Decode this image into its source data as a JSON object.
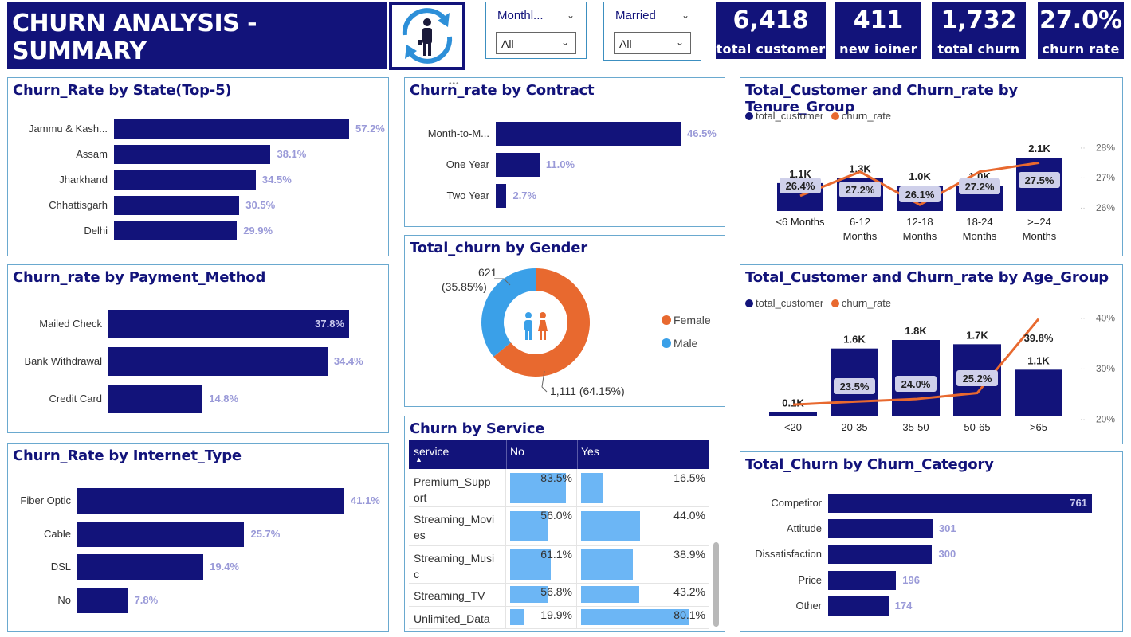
{
  "header": {
    "title": "CHURN ANALYSIS - SUMMARY",
    "logo_icon": "churn-person-cycle-icon"
  },
  "slicers": [
    {
      "label": "Monthl...",
      "value": "All"
    },
    {
      "label": "Married",
      "value": "All"
    }
  ],
  "kpis": [
    {
      "value": "6,418",
      "label": "total customer"
    },
    {
      "value": "411",
      "label": "new ioiner"
    },
    {
      "value": "1,732",
      "label": "total churn"
    },
    {
      "value": "27.0%",
      "label": "churn rate"
    }
  ],
  "colors": {
    "navy": "#12137a",
    "orange": "#e8692f",
    "light_blue": "#6cb6f5",
    "panel_border": "#6aa9cf"
  },
  "panels": {
    "state": {
      "title": "Churn_Rate by State(Top-5)",
      "rows": [
        {
          "label": "Jammu & Kash...",
          "value": 57.2,
          "text": "57.2%"
        },
        {
          "label": "Assam",
          "value": 38.1,
          "text": "38.1%"
        },
        {
          "label": "Jharkhand",
          "value": 34.5,
          "text": "34.5%"
        },
        {
          "label": "Chhattisgarh",
          "value": 30.5,
          "text": "30.5%"
        },
        {
          "label": "Delhi",
          "value": 29.9,
          "text": "29.9%"
        }
      ]
    },
    "payment": {
      "title": "Churn_rate by Payment_Method",
      "rows": [
        {
          "label": "Mailed Check",
          "value": 37.8,
          "text": "37.8%"
        },
        {
          "label": "Bank Withdrawal",
          "value": 34.4,
          "text": "34.4%"
        },
        {
          "label": "Credit Card",
          "value": 14.8,
          "text": "14.8%"
        }
      ]
    },
    "internet": {
      "title": "Churn_Rate by Internet_Type",
      "rows": [
        {
          "label": "Fiber Optic",
          "value": 41.1,
          "text": "41.1%"
        },
        {
          "label": "Cable",
          "value": 25.7,
          "text": "25.7%"
        },
        {
          "label": "DSL",
          "value": 19.4,
          "text": "19.4%"
        },
        {
          "label": "No",
          "value": 7.8,
          "text": "7.8%"
        }
      ]
    },
    "contract": {
      "title": "Churn_rate by Contract",
      "rows": [
        {
          "label": "Month-to-M...",
          "value": 46.5,
          "text": "46.5%"
        },
        {
          "label": "One Year",
          "value": 11.0,
          "text": "11.0%"
        },
        {
          "label": "Two Year",
          "value": 2.7,
          "text": "2.7%"
        }
      ]
    },
    "gender": {
      "title": "Total_churn by Gender",
      "slices": [
        {
          "name": "Female",
          "value": 1111,
          "label": "1,111 (64.15%)"
        },
        {
          "name": "Male",
          "value": 621,
          "label_line1": "621",
          "label_line2": "(35.85%)"
        }
      ],
      "center_icon": "couple-icon"
    },
    "service": {
      "title": "Churn by Service",
      "columns": [
        "service",
        "No",
        "Yes"
      ],
      "rows": [
        {
          "service_line1": "Premium_Supp",
          "service_line2": "ort",
          "no": 83.5,
          "no_text": "83.5%",
          "yes": 16.5,
          "yes_text": "16.5%"
        },
        {
          "service_line1": "Streaming_Movi",
          "service_line2": "es",
          "no": 56.0,
          "no_text": "56.0%",
          "yes": 44.0,
          "yes_text": "44.0%"
        },
        {
          "service_line1": "Streaming_Musi",
          "service_line2": "c",
          "no": 61.1,
          "no_text": "61.1%",
          "yes": 38.9,
          "yes_text": "38.9%"
        },
        {
          "service_line1": "Streaming_TV",
          "service_line2": "",
          "no": 56.8,
          "no_text": "56.8%",
          "yes": 43.2,
          "yes_text": "43.2%"
        },
        {
          "service_line1": "Unlimited_Data",
          "service_line2": "",
          "no": 19.9,
          "no_text": "19.9%",
          "yes": 80.1,
          "yes_text": "80.1%"
        }
      ]
    },
    "tenure": {
      "title": "Total_Customer and Churn_rate by Tenure_Group",
      "legend": [
        "total_customer",
        "churn_rate"
      ]
    },
    "age": {
      "title": "Total_Customer and Churn_rate by Age_Group",
      "legend": [
        "total_customer",
        "churn_rate"
      ]
    },
    "category": {
      "title": "Total_Churn by Churn_Category",
      "rows": [
        {
          "label": "Competitor",
          "value": 761,
          "text": "761"
        },
        {
          "label": "Attitude",
          "value": 301,
          "text": "301"
        },
        {
          "label": "Dissatisfaction",
          "value": 300,
          "text": "300"
        },
        {
          "label": "Price",
          "value": 196,
          "text": "196"
        },
        {
          "label": "Other",
          "value": 174,
          "text": "174"
        }
      ]
    }
  },
  "chart_data": [
    {
      "type": "bar",
      "title": "Churn_Rate by State(Top-5)",
      "categories": [
        "Jammu & Kash...",
        "Assam",
        "Jharkhand",
        "Chhattisgarh",
        "Delhi"
      ],
      "values": [
        57.2,
        38.1,
        34.5,
        30.5,
        29.9
      ]
    },
    {
      "type": "bar",
      "title": "Churn_rate by Payment_Method",
      "categories": [
        "Mailed Check",
        "Bank Withdrawal",
        "Credit Card"
      ],
      "values": [
        37.8,
        34.4,
        14.8
      ]
    },
    {
      "type": "bar",
      "title": "Churn_Rate by Internet_Type",
      "categories": [
        "Fiber Optic",
        "Cable",
        "DSL",
        "No"
      ],
      "values": [
        41.1,
        25.7,
        19.4,
        7.8
      ]
    },
    {
      "type": "bar",
      "title": "Churn_rate by Contract",
      "categories": [
        "Month-to-M...",
        "One Year",
        "Two Year"
      ],
      "values": [
        46.5,
        11.0,
        2.7
      ]
    },
    {
      "type": "pie",
      "title": "Total_churn by Gender",
      "categories": [
        "Female",
        "Male"
      ],
      "values": [
        1111,
        621
      ]
    },
    {
      "type": "table",
      "title": "Churn by Service",
      "columns": [
        "service",
        "No",
        "Yes"
      ],
      "rows": [
        [
          "Premium_Support",
          83.5,
          16.5
        ],
        [
          "Streaming_Movies",
          56.0,
          44.0
        ],
        [
          "Streaming_Music",
          61.1,
          38.9
        ],
        [
          "Streaming_TV",
          56.8,
          43.2
        ],
        [
          "Unlimited_Data",
          19.9,
          80.1
        ]
      ]
    },
    {
      "type": "bar",
      "title": "Total_Customer and Churn_rate by Tenure_Group",
      "categories": [
        "<6 Months",
        "6-12 Months",
        "12-18 Months",
        "18-24 Months",
        ">=24 Months"
      ],
      "category_lines": [
        [
          "<6 Months"
        ],
        [
          "6-12",
          "Months"
        ],
        [
          "12-18",
          "Months"
        ],
        [
          "18-24",
          "Months"
        ],
        [
          ">=24",
          "Months"
        ]
      ],
      "series": [
        {
          "name": "total_customer",
          "type": "bar",
          "values": [
            1.1,
            1.3,
            1.0,
            1.0,
            2.1
          ],
          "labels": [
            "1.1K",
            "1.3K",
            "1.0K",
            "1.0K",
            "2.1K"
          ]
        },
        {
          "name": "churn_rate",
          "type": "line",
          "values": [
            26.4,
            27.2,
            26.1,
            27.2,
            27.5
          ],
          "labels": [
            "26.4%",
            "27.2%",
            "26.1%",
            "27.2%",
            "27.5%"
          ]
        }
      ],
      "y2_ticks": [
        "28%",
        "27%",
        "26%"
      ],
      "y2lim": [
        25.6,
        28.2
      ]
    },
    {
      "type": "bar",
      "title": "Total_Customer and Churn_rate by Age_Group",
      "categories": [
        "<20",
        "20-35",
        "35-50",
        "50-65",
        ">65"
      ],
      "series": [
        {
          "name": "total_customer",
          "type": "bar",
          "values": [
            0.1,
            1.6,
            1.8,
            1.7,
            1.1
          ],
          "labels": [
            "0.1K",
            "1.6K",
            "1.8K",
            "1.7K",
            "1.1K"
          ]
        },
        {
          "name": "churn_rate",
          "type": "line",
          "values": [
            22.9,
            23.5,
            24.0,
            25.2,
            39.8
          ],
          "labels": [
            "",
            "23.5%",
            "24.0%",
            "25.2%",
            "39.8%"
          ]
        }
      ],
      "y2_ticks": [
        "40%",
        "30%",
        "20%"
      ],
      "y2lim": [
        19,
        41
      ]
    },
    {
      "type": "bar",
      "title": "Total_Churn by Churn_Category",
      "categories": [
        "Competitor",
        "Attitude",
        "Dissatisfaction",
        "Price",
        "Other"
      ],
      "values": [
        761,
        301,
        300,
        196,
        174
      ]
    }
  ]
}
